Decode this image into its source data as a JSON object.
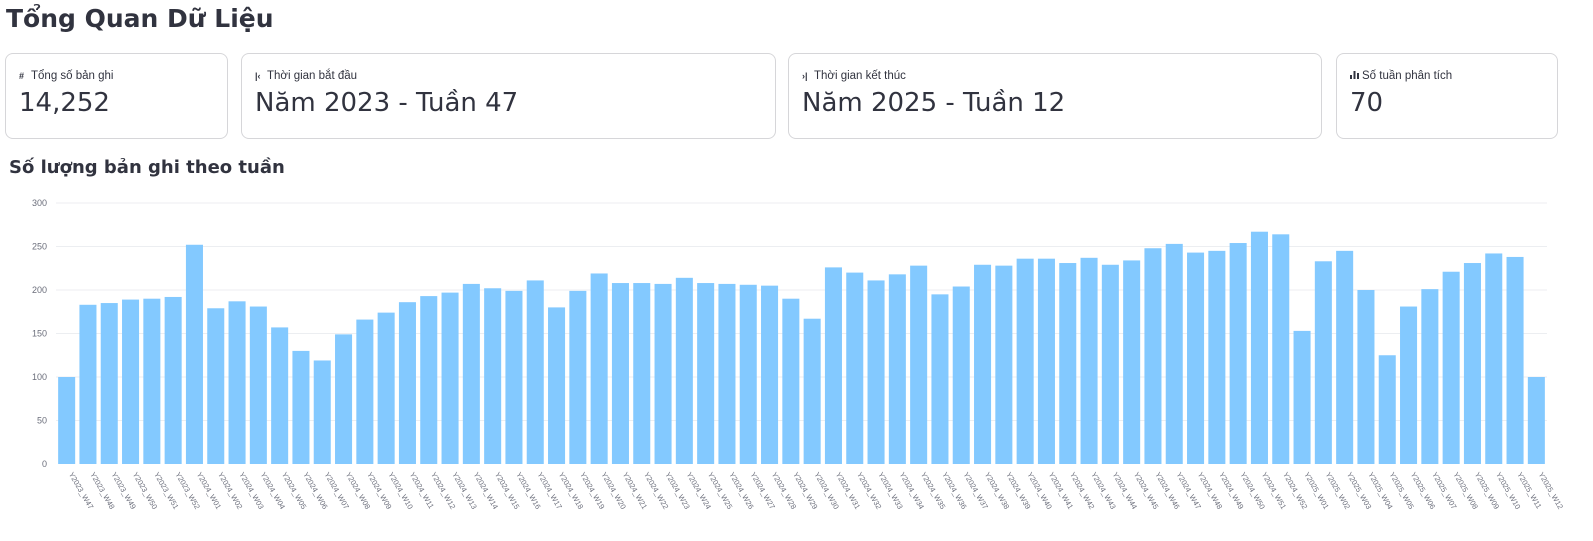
{
  "page": {
    "title": "Tổng Quan Dữ Liệu"
  },
  "metrics": [
    {
      "icon": "hash-icon",
      "glyph": "#",
      "label": "Tổng số bản ghi",
      "value": "14,252"
    },
    {
      "icon": "skip-start-icon",
      "glyph": "|‹",
      "label": "Thời gian bắt đầu",
      "value": "Năm 2023 - Tuần 47"
    },
    {
      "icon": "skip-end-icon",
      "glyph": "›|",
      "label": "Thời gian kết thúc",
      "value": "Năm 2025 - Tuần 12"
    },
    {
      "icon": "bar-chart-icon",
      "glyph": "",
      "label": "Số tuần phân tích",
      "value": "70"
    }
  ],
  "chart": {
    "title": "Số lượng bản ghi theo tuần"
  },
  "chart_data": {
    "type": "bar",
    "color": "#83c9ff",
    "grid": true,
    "ylim": [
      0,
      300
    ],
    "yticks": [
      0,
      50,
      100,
      150,
      200,
      250,
      300
    ],
    "categories": [
      "Y2023_W47",
      "Y2023_W48",
      "Y2023_W49",
      "Y2023_W50",
      "Y2023_W51",
      "Y2023_W52",
      "Y2024_W01",
      "Y2024_W02",
      "Y2024_W03",
      "Y2024_W04",
      "Y2024_W05",
      "Y2024_W06",
      "Y2024_W07",
      "Y2024_W08",
      "Y2024_W09",
      "Y2024_W10",
      "Y2024_W11",
      "Y2024_W12",
      "Y2024_W13",
      "Y2024_W14",
      "Y2024_W15",
      "Y2024_W16",
      "Y2024_W17",
      "Y2024_W18",
      "Y2024_W19",
      "Y2024_W20",
      "Y2024_W21",
      "Y2024_W22",
      "Y2024_W23",
      "Y2024_W24",
      "Y2024_W25",
      "Y2024_W26",
      "Y2024_W27",
      "Y2024_W28",
      "Y2024_W29",
      "Y2024_W30",
      "Y2024_W31",
      "Y2024_W32",
      "Y2024_W33",
      "Y2024_W34",
      "Y2024_W35",
      "Y2024_W36",
      "Y2024_W37",
      "Y2024_W38",
      "Y2024_W39",
      "Y2024_W40",
      "Y2024_W41",
      "Y2024_W42",
      "Y2024_W43",
      "Y2024_W44",
      "Y2024_W45",
      "Y2024_W46",
      "Y2024_W47",
      "Y2024_W48",
      "Y2024_W49",
      "Y2024_W50",
      "Y2024_W51",
      "Y2024_W52",
      "Y2025_W01",
      "Y2025_W02",
      "Y2025_W03",
      "Y2025_W04",
      "Y2025_W05",
      "Y2025_W06",
      "Y2025_W07",
      "Y2025_W08",
      "Y2025_W09",
      "Y2025_W10",
      "Y2025_W11",
      "Y2025_W12"
    ],
    "values": [
      100,
      183,
      185,
      189,
      190,
      192,
      252,
      179,
      187,
      181,
      157,
      130,
      119,
      149,
      166,
      174,
      186,
      193,
      197,
      207,
      202,
      199,
      211,
      180,
      199,
      219,
      208,
      208,
      207,
      214,
      208,
      207,
      206,
      205,
      190,
      167,
      226,
      220,
      211,
      218,
      228,
      195,
      204,
      229,
      228,
      236,
      236,
      231,
      237,
      229,
      234,
      248,
      253,
      243,
      245,
      254,
      267,
      264,
      153,
      233,
      245,
      200,
      125,
      181,
      201,
      221,
      231,
      242,
      238,
      100
    ]
  }
}
